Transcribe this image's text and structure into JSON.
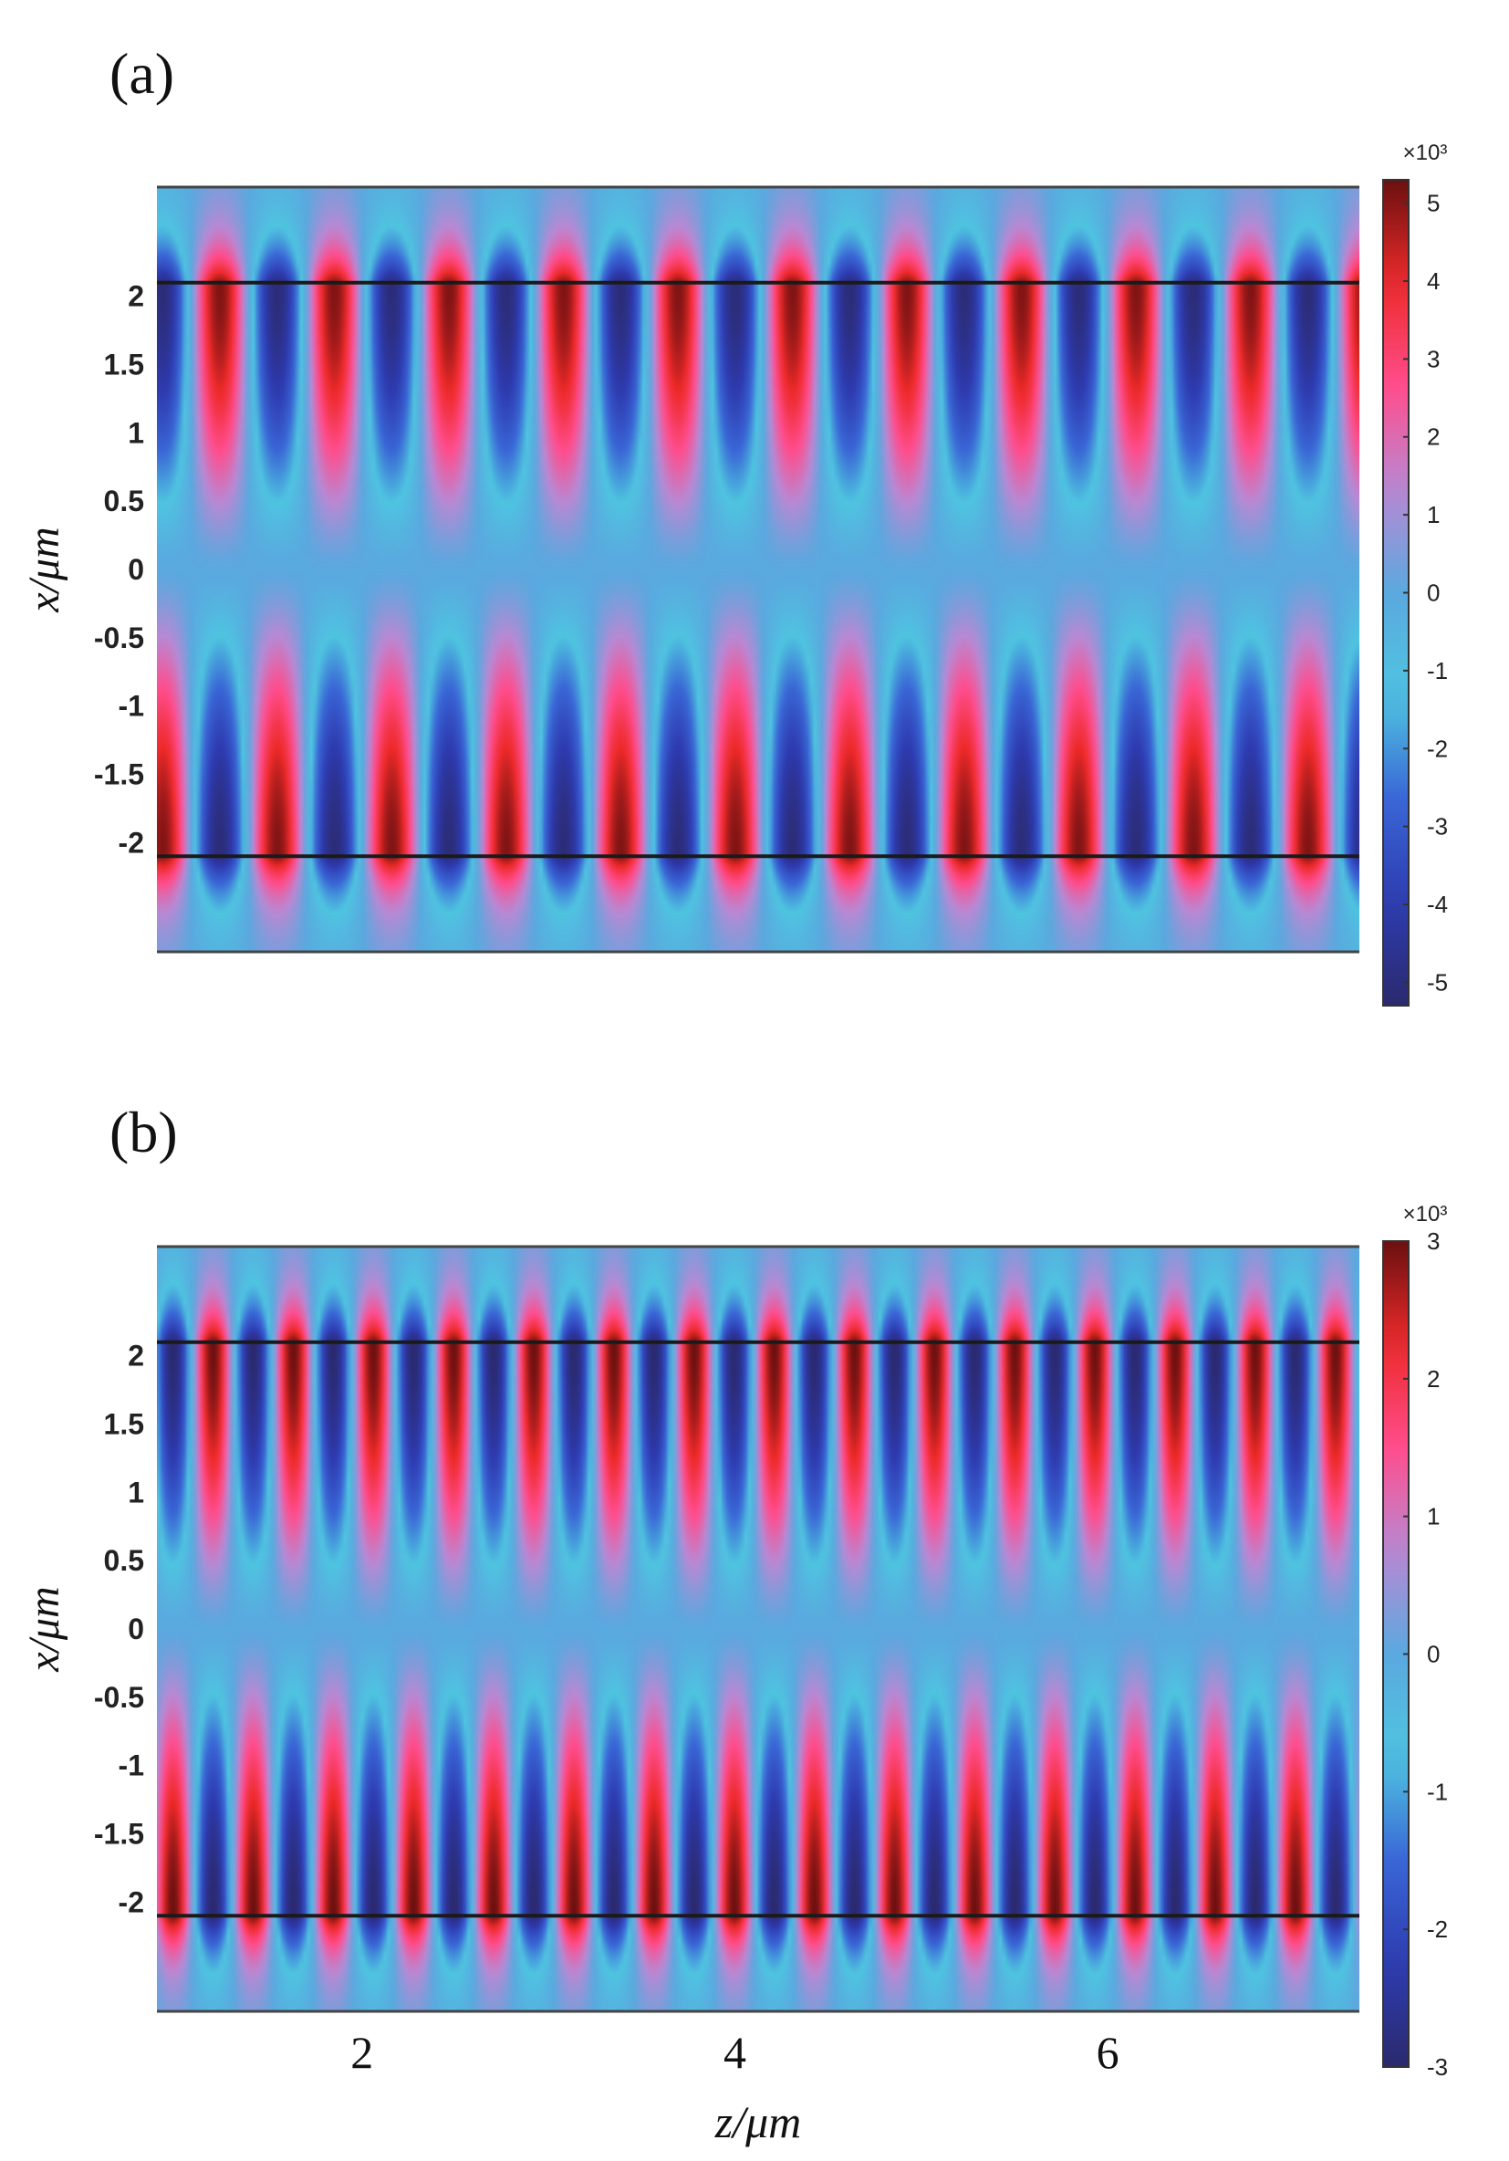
{
  "chart_data": [
    {
      "type": "heatmap",
      "panel_label": "(a)",
      "xlabel": "",
      "ylabel": "x/μm",
      "ylim": [
        -2.8,
        2.8
      ],
      "xlim": [
        0.9,
        7.35
      ],
      "yticks": [
        {
          "v": 2,
          "label": "2"
        },
        {
          "v": 1.5,
          "label": "1.5"
        },
        {
          "v": 1,
          "label": "1"
        },
        {
          "v": 0.5,
          "label": "0.5"
        },
        {
          "v": 0,
          "label": "0"
        },
        {
          "v": -0.5,
          "label": "-0.5"
        },
        {
          "v": -1,
          "label": "-1"
        },
        {
          "v": -1.5,
          "label": "-1.5"
        },
        {
          "v": -2,
          "label": "-2"
        }
      ],
      "xticks": [],
      "interfaces_x": [
        2.1,
        -2.1
      ],
      "field": {
        "periods": 10.5,
        "phase_top_red": 0.9,
        "amplitude": 5.1
      },
      "colorbar": {
        "exponent_label": "×10³",
        "range": [
          -5.3,
          5.3
        ],
        "ticks": [
          {
            "v": 5,
            "label": "5"
          },
          {
            "v": 4,
            "label": "4"
          },
          {
            "v": 3,
            "label": "3"
          },
          {
            "v": 2,
            "label": "2"
          },
          {
            "v": 1,
            "label": "1"
          },
          {
            "v": 0,
            "label": "0"
          },
          {
            "v": -1,
            "label": "-1"
          },
          {
            "v": -2,
            "label": "-2"
          },
          {
            "v": -3,
            "label": "-3"
          },
          {
            "v": -4,
            "label": "-4"
          },
          {
            "v": -5,
            "label": "-5"
          }
        ]
      }
    },
    {
      "type": "heatmap",
      "panel_label": "(b)",
      "xlabel": "z/μm",
      "ylabel": "x/μm",
      "ylim": [
        -2.8,
        2.8
      ],
      "xlim": [
        0.9,
        7.35
      ],
      "yticks": [
        {
          "v": 2,
          "label": "2"
        },
        {
          "v": 1.5,
          "label": "1.5"
        },
        {
          "v": 1,
          "label": "1"
        },
        {
          "v": 0.5,
          "label": "0.5"
        },
        {
          "v": 0,
          "label": "0"
        },
        {
          "v": -0.5,
          "label": "-0.5"
        },
        {
          "v": -1,
          "label": "-1"
        },
        {
          "v": -1.5,
          "label": "-1.5"
        },
        {
          "v": -2,
          "label": "-2"
        }
      ],
      "xticks": [
        {
          "v": 2,
          "label": "2"
        },
        {
          "v": 4,
          "label": "4"
        },
        {
          "v": 6,
          "label": "6"
        }
      ],
      "interfaces_x": [
        2.1,
        -2.1
      ],
      "field": {
        "periods": 15,
        "phase_top_red": 0.6,
        "amplitude": 3.0
      },
      "colorbar": {
        "exponent_label": "×10³",
        "range": [
          -3,
          3
        ],
        "ticks": [
          {
            "v": 3,
            "label": "3"
          },
          {
            "v": 2,
            "label": "2"
          },
          {
            "v": 1,
            "label": "1"
          },
          {
            "v": 0,
            "label": "0"
          },
          {
            "v": -1,
            "label": "-1"
          },
          {
            "v": -2,
            "label": "-2"
          },
          {
            "v": -3,
            "label": "-3"
          }
        ]
      }
    }
  ],
  "colors": {
    "colormap": [
      "#2b2a6e",
      "#2e3bb0",
      "#3a66d6",
      "#4fc4e0",
      "#5aa9df",
      "#b889d4",
      "#ff4d8d",
      "#ee2a2a",
      "#6b1010"
    ],
    "background_field": "#5aa9df",
    "interface_line": "#1a1a1a"
  }
}
